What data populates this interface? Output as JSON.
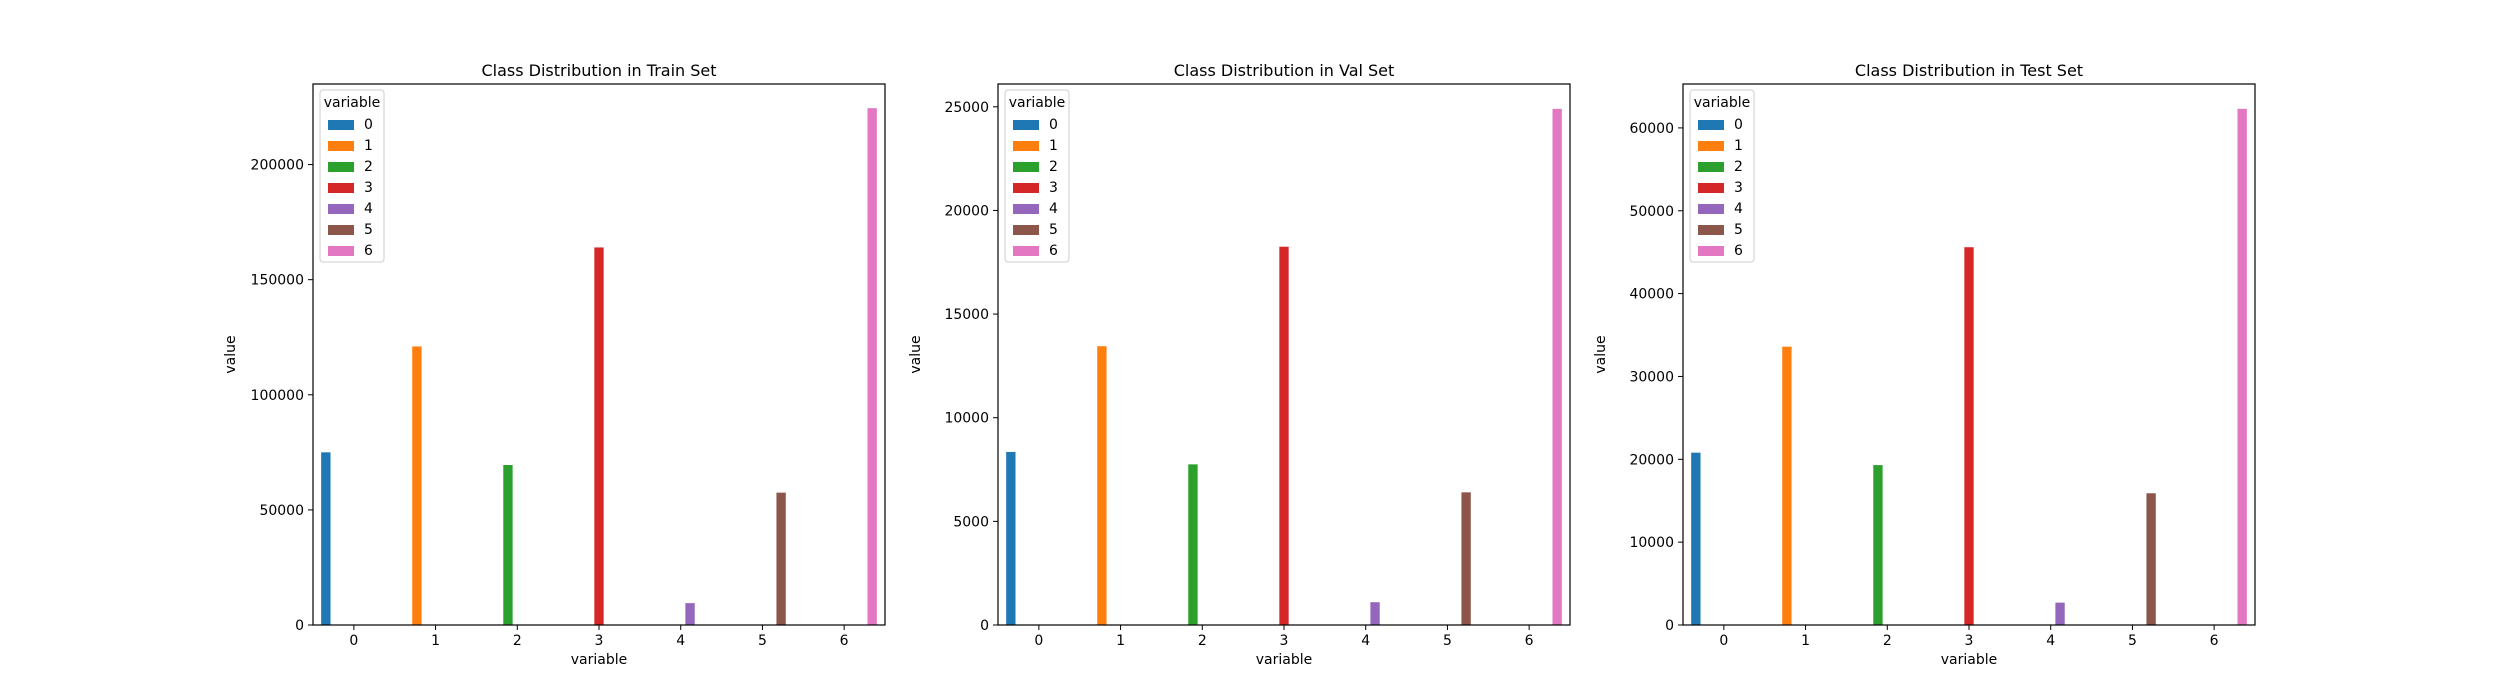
{
  "chart_data": [
    {
      "type": "bar",
      "title": "Class Distribution in Train Set",
      "xlabel": "variable",
      "ylabel": "value",
      "categories": [
        "0",
        "1",
        "2",
        "3",
        "4",
        "5",
        "6"
      ],
      "values": [
        75000,
        121000,
        69500,
        164000,
        9500,
        57500,
        224500
      ],
      "ylim": [
        0,
        235000
      ],
      "yticks": [
        0,
        50000,
        100000,
        150000,
        200000
      ],
      "legend": {
        "title": "variable",
        "entries": [
          "0",
          "1",
          "2",
          "3",
          "4",
          "5",
          "6"
        ],
        "placement": "upper-left"
      },
      "grid": false
    },
    {
      "type": "bar",
      "title": "Class Distribution in Val Set",
      "xlabel": "variable",
      "ylabel": "value",
      "categories": [
        "0",
        "1",
        "2",
        "3",
        "4",
        "5",
        "6"
      ],
      "values": [
        8350,
        13450,
        7750,
        18250,
        1100,
        6400,
        24900
      ],
      "ylim": [
        0,
        26100
      ],
      "yticks": [
        0,
        5000,
        10000,
        15000,
        20000,
        25000
      ],
      "legend": {
        "title": "variable",
        "entries": [
          "0",
          "1",
          "2",
          "3",
          "4",
          "5",
          "6"
        ],
        "placement": "upper-left"
      },
      "grid": false
    },
    {
      "type": "bar",
      "title": "Class Distribution in Test Set",
      "xlabel": "variable",
      "ylabel": "value",
      "categories": [
        "0",
        "1",
        "2",
        "3",
        "4",
        "5",
        "6"
      ],
      "values": [
        20800,
        33600,
        19300,
        45600,
        2700,
        15900,
        62300
      ],
      "ylim": [
        0,
        65300
      ],
      "yticks": [
        0,
        10000,
        20000,
        30000,
        40000,
        50000,
        60000
      ],
      "legend": {
        "title": "variable",
        "entries": [
          "0",
          "1",
          "2",
          "3",
          "4",
          "5",
          "6"
        ],
        "placement": "upper-left"
      },
      "grid": false
    }
  ],
  "colors": [
    "#1f77b4",
    "#ff7f0e",
    "#2ca02c",
    "#d62728",
    "#9467bd",
    "#8c564b",
    "#e377c2"
  ]
}
